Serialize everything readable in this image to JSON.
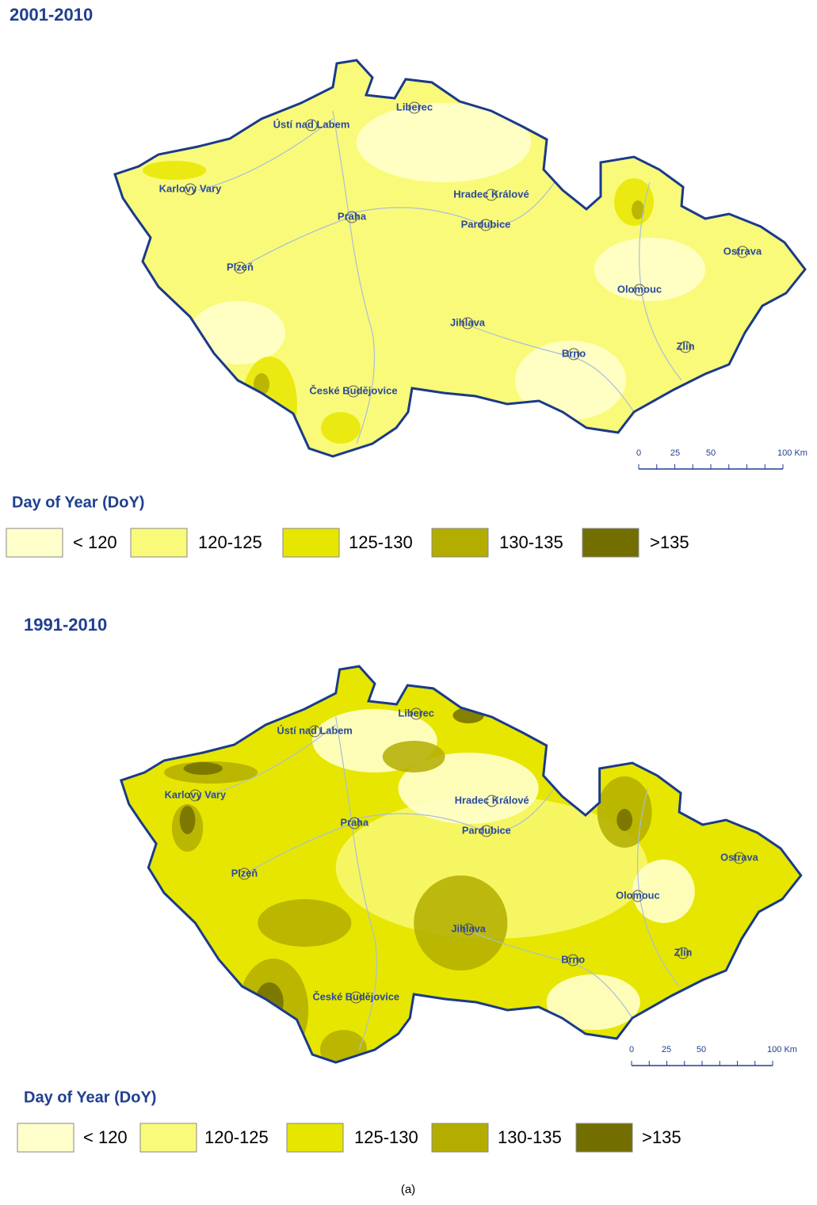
{
  "panels": [
    {
      "title": "2001-2010",
      "cities": [
        "Liberec",
        "Ústí nad Labem",
        "Karlovy Vary",
        "Hradec Králové",
        "Praha",
        "Pardubice",
        "Ostrava",
        "Plzeň",
        "Olomouc",
        "Jihlava",
        "Brno",
        "Zlín",
        "České Budějovice"
      ],
      "scale": [
        "0",
        "25",
        "50",
        "100 Km"
      ],
      "legend": {
        "title": "Day of Year (DoY)",
        "items": [
          {
            "label": "< 120",
            "color": "#ffffcc"
          },
          {
            "label": "120-125",
            "color": "#fafa7a"
          },
          {
            "label": "125-130",
            "color": "#e6e600"
          },
          {
            "label": "130-135",
            "color": "#b3ad00"
          },
          {
            "label": ">135",
            "color": "#726e00"
          }
        ]
      }
    },
    {
      "title": "1991-2010",
      "cities": [
        "Liberec",
        "Ústí nad Labem",
        "Karlovy Vary",
        "Hradec Králové",
        "Praha",
        "Pardubice",
        "Ostrava",
        "Plzeň",
        "Olomouc",
        "Jihlava",
        "Brno",
        "Zlín",
        "České Budějovice"
      ],
      "scale": [
        "0",
        "25",
        "50",
        "100 Km"
      ],
      "legend": {
        "title": "Day of Year (DoY)",
        "items": [
          {
            "label": "< 120",
            "color": "#ffffcc"
          },
          {
            "label": "120-125",
            "color": "#fafa7a"
          },
          {
            "label": "125-130",
            "color": "#e6e600"
          },
          {
            "label": "130-135",
            "color": "#b3ad00"
          },
          {
            "label": ">135",
            "color": "#726e00"
          }
        ]
      }
    }
  ],
  "caption": "(a)"
}
